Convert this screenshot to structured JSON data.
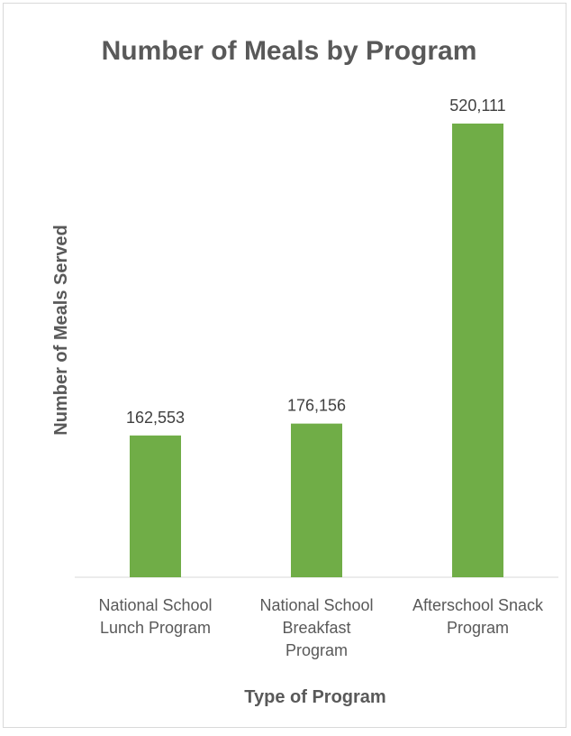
{
  "chart_data": {
    "type": "bar",
    "title": "Number of Meals by Program",
    "xlabel": "Type of Program",
    "ylabel": "Number of Meals Served",
    "categories": [
      [
        "National School",
        "Lunch Program"
      ],
      [
        "National School",
        "Breakfast",
        "Program"
      ],
      [
        "Afterschool Snack",
        "Program"
      ]
    ],
    "values": [
      162553,
      176156,
      520111
    ],
    "data_labels": [
      "162,553",
      "176,156",
      "520,111"
    ],
    "ylim": [
      0,
      600000
    ],
    "grid": false,
    "legend": "none",
    "colors": {
      "bar": "#70ad47",
      "axis": "#d9d9d9",
      "text": "#595959",
      "label": "#404040"
    }
  }
}
